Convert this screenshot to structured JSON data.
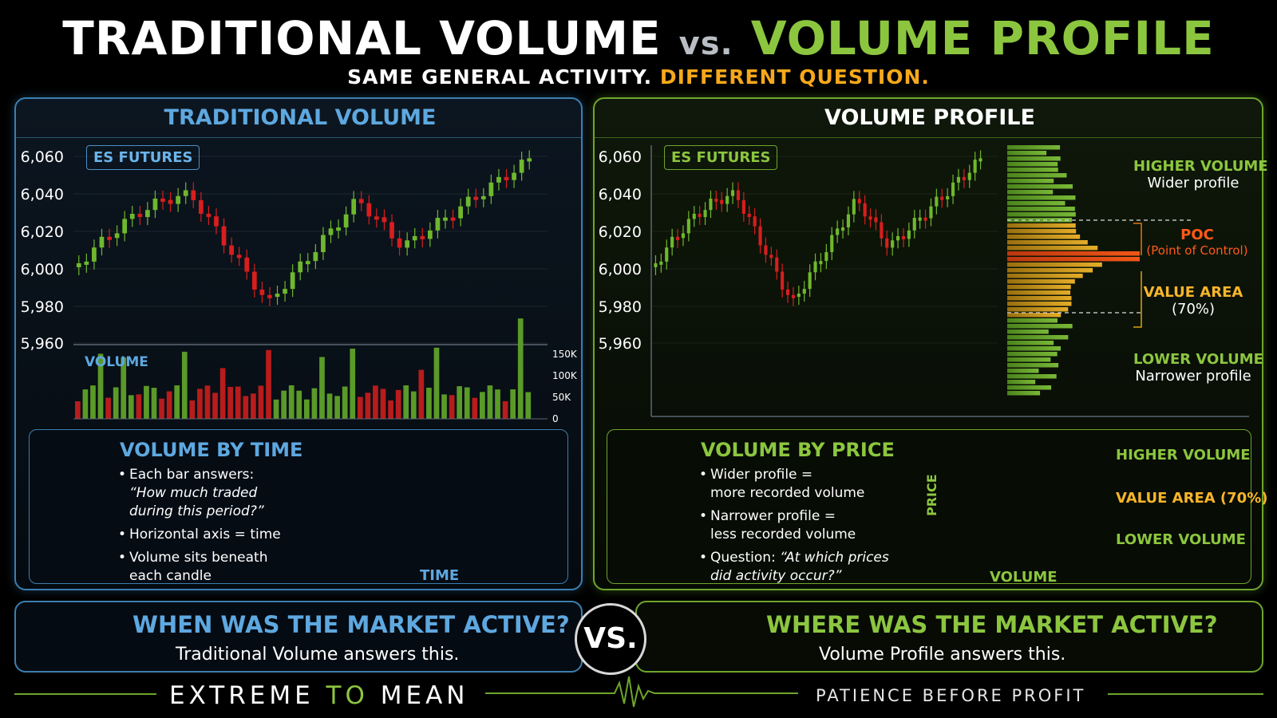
{
  "header": {
    "title_left": "TRADITIONAL VOLUME",
    "title_vs": "vs.",
    "title_right": "VOLUME PROFILE",
    "subtitle_white": "SAME GENERAL ACTIVITY.",
    "subtitle_orange": "DIFFERENT QUESTION."
  },
  "left_panel": {
    "title": "TRADITIONAL VOLUME",
    "badge": "ES FUTURES",
    "y_ticks": [
      "6,060",
      "6,040",
      "6,020",
      "6,000",
      "5,980",
      "5,960"
    ],
    "volume_label": "VOLUME",
    "volume_ticks": [
      "150K",
      "100K",
      "50K",
      "0"
    ],
    "sub": {
      "heading": "VOLUME BY TIME",
      "b1_l1": "Each bar answers:",
      "b1_l2": "“How much traded",
      "b1_l3": "during this period?”",
      "b2": "Horizontal axis = time",
      "b3_l1": "Volume sits beneath",
      "b3_l2": "each candle",
      "axis_label": "TIME"
    }
  },
  "right_panel": {
    "title": "VOLUME PROFILE",
    "badge": "ES FUTURES",
    "y_ticks": [
      "6,060",
      "6,040",
      "6,020",
      "6,000",
      "5,980",
      "5,960"
    ],
    "higher": "HIGHER VOLUME",
    "higher_sub": "Wider profile",
    "poc": "POC",
    "poc_sub": "(Point of Control)",
    "value_area": "VALUE AREA",
    "value_area_sub": "(70%)",
    "lower": "LOWER VOLUME",
    "lower_sub": "Narrower profile",
    "sub": {
      "heading": "VOLUME BY PRICE",
      "b1_l1": "Wider profile =",
      "b1_l2": "more recorded volume",
      "b2_l1": "Narrower profile =",
      "b2_l2": "less recorded volume",
      "b3_l1": "Question: ",
      "b3_l1_it": "“At which prices",
      "b3_l2": "did activity occur?”",
      "price_label": "PRICE",
      "volume_label": "VOLUME",
      "mini_higher": "HIGHER VOLUME",
      "mini_value": "VALUE AREA (70%)",
      "mini_lower": "LOWER VOLUME"
    }
  },
  "bottom": {
    "left_q1": "WHEN WAS",
    "left_q2": "THE MARKET ACTIVE?",
    "left_a": "Traditional Volume answers this.",
    "vs": "VS.",
    "right_q1": "WHERE WAS",
    "right_q2": "THE MARKET ACTIVE?",
    "right_a": "Volume Profile answers this."
  },
  "footer": {
    "brand_1": "EXTREME",
    "brand_2": "TO",
    "brand_3": "MEAN",
    "tagline": "PATIENCE BEFORE PROFIT"
  },
  "colors": {
    "blue": "#5ea8e0",
    "green": "#8cc63f",
    "orange": "#f7a81b",
    "red": "#e02020"
  },
  "icons": [
    "clock-icon",
    "target-icon"
  ]
}
